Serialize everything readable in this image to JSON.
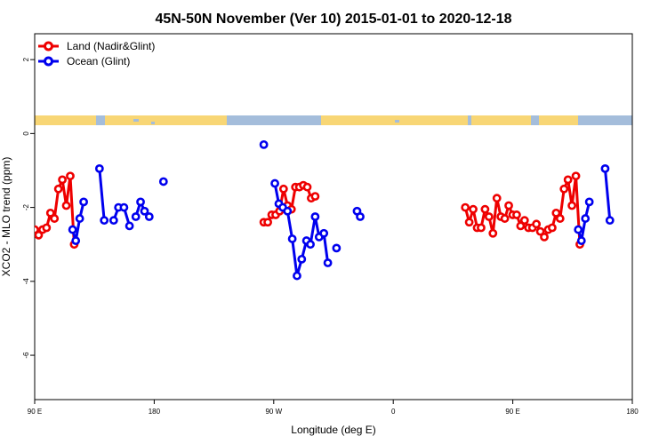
{
  "chart_data": {
    "type": "line",
    "title": "45N-50N November (Ver 10)   2015-01-01 to 2020-12-18",
    "xlabel": "Longitude (deg E)",
    "ylabel": "XCO2 - MLO trend (ppm)",
    "xlim": [
      90,
      450
    ],
    "ylim": [
      -7.2,
      2.7
    ],
    "x_ticks": [
      {
        "value": 90,
        "label": "90 E"
      },
      {
        "value": 180,
        "label": "180"
      },
      {
        "value": 270,
        "label": "90 W"
      },
      {
        "value": 360,
        "label": "0"
      },
      {
        "value": 450,
        "label": "90 E"
      },
      {
        "value": 540,
        "label": "180"
      }
    ],
    "y_ticks": [
      {
        "value": 2,
        "label": "2"
      },
      {
        "value": 0,
        "label": "0"
      },
      {
        "value": -2,
        "label": "-2"
      },
      {
        "value": -4,
        "label": "-4"
      },
      {
        "value": -6,
        "label": "-6"
      }
    ],
    "legend_position": "top-left",
    "colors": {
      "land": "#ee0000",
      "ocean": "#0000ee",
      "map_land": "#f8d675",
      "map_ocean": "#a4bddb"
    },
    "series": [
      {
        "name": "Land (Nadir&Glint)",
        "color": "#ee0000",
        "segments": [
          [
            [
              90,
              -2.6
            ],
            [
              92.5,
              -2.75
            ],
            [
              95,
              -2.6
            ],
            [
              97.5,
              -2.55
            ],
            [
              100,
              -2.15
            ],
            [
              102.5,
              -2.3
            ],
            [
              105,
              -1.5
            ],
            [
              107.5,
              -1.25
            ],
            [
              110,
              -1.95
            ],
            [
              112.5,
              -1.15
            ],
            [
              115,
              -3.0
            ]
          ],
          [
            [
              235,
              -2.4
            ],
            [
              237.5,
              -2.4
            ],
            [
              240,
              -2.2
            ],
            [
              242.5,
              -2.2
            ],
            [
              245,
              -2.1
            ],
            [
              247.5,
              -1.5
            ],
            [
              250,
              -1.95
            ],
            [
              252.5,
              -2.05
            ],
            [
              255,
              -1.45
            ],
            [
              257.5,
              -1.45
            ],
            [
              260,
              -1.4
            ],
            [
              262.5,
              -1.45
            ],
            [
              265,
              -1.75
            ],
            [
              267.5,
              -1.7
            ]
          ],
          [
            [
              362.5,
              -2.0
            ],
            [
              365,
              -2.4
            ],
            [
              367.5,
              -2.05
            ],
            [
              370,
              -2.55
            ],
            [
              372.5,
              -2.55
            ],
            [
              375,
              -2.05
            ],
            [
              377.5,
              -2.25
            ],
            [
              380,
              -2.7
            ],
            [
              382.5,
              -1.75
            ],
            [
              385,
              -2.25
            ],
            [
              387.5,
              -2.3
            ],
            [
              390,
              -1.95
            ],
            [
              392.5,
              -2.2
            ],
            [
              395,
              -2.2
            ],
            [
              397.5,
              -2.5
            ],
            [
              400,
              -2.35
            ],
            [
              402.5,
              -2.55
            ],
            [
              405,
              -2.55
            ],
            [
              407.5,
              -2.45
            ],
            [
              410,
              -2.65
            ],
            [
              412.5,
              -2.8
            ],
            [
              415,
              -2.6
            ],
            [
              417.5,
              -2.55
            ],
            [
              420,
              -2.15
            ],
            [
              422.5,
              -2.3
            ],
            [
              425,
              -1.5
            ],
            [
              427.5,
              -1.25
            ],
            [
              430,
              -1.95
            ],
            [
              432.5,
              -1.15
            ],
            [
              435,
              -3.0
            ]
          ]
        ]
      },
      {
        "name": "Ocean (Glint)",
        "color": "#0000ee",
        "segments": [
          [
            [
              114,
              -2.6
            ],
            [
              116,
              -2.9
            ],
            [
              118.5,
              -2.3
            ],
            [
              121,
              -1.85
            ]
          ],
          [
            [
              131,
              -0.95
            ],
            [
              134,
              -2.35
            ]
          ],
          [
            [
              140,
              -2.35
            ],
            [
              143,
              -2.0
            ],
            [
              146.5,
              -2.0
            ],
            [
              150,
              -2.5
            ]
          ],
          [
            [
              154,
              -2.25
            ],
            [
              157,
              -1.85
            ],
            [
              159.5,
              -2.1
            ],
            [
              162.5,
              -2.25
            ]
          ],
          [
            [
              171.5,
              -1.3
            ]
          ],
          [
            [
              235,
              -0.3
            ]
          ],
          [
            [
              242,
              -1.35
            ],
            [
              244.5,
              -1.9
            ],
            [
              247,
              -2.0
            ],
            [
              250,
              -2.1
            ],
            [
              253,
              -2.85
            ],
            [
              256,
              -3.85
            ],
            [
              259,
              -3.4
            ],
            [
              262,
              -2.9
            ],
            [
              264.5,
              -3.0
            ],
            [
              267.5,
              -2.25
            ],
            [
              270,
              -2.8
            ],
            [
              273,
              -2.7
            ],
            [
              275.5,
              -3.5
            ]
          ],
          [
            [
              281,
              -3.1
            ]
          ],
          [
            [
              294,
              -2.1
            ],
            [
              296,
              -2.25
            ]
          ],
          [
            [
              434,
              -2.6
            ],
            [
              436,
              -2.9
            ],
            [
              438.5,
              -2.3
            ],
            [
              441,
              -1.85
            ]
          ],
          [
            [
              451,
              -0.95
            ],
            [
              454,
              -2.35
            ]
          ]
        ]
      }
    ]
  }
}
